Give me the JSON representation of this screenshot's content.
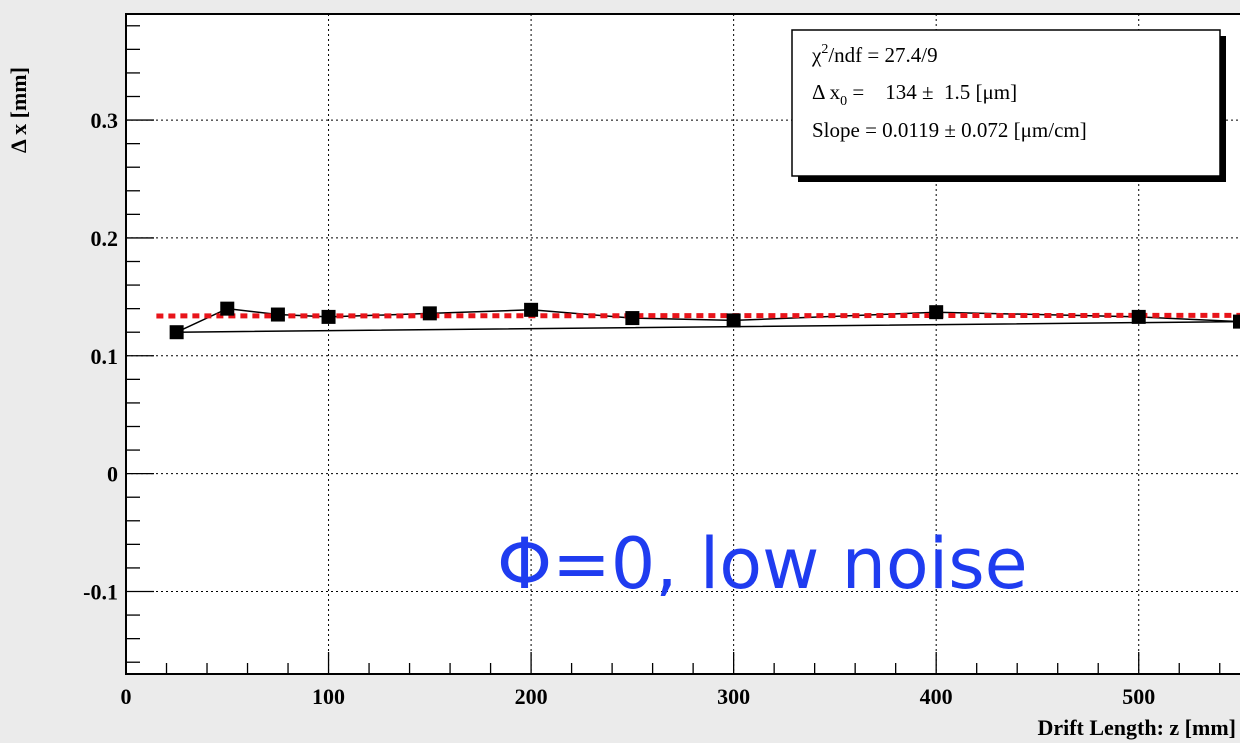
{
  "chart_data": {
    "type": "scatter",
    "xlabel": "Drift Length: z [mm]",
    "ylabel": "Δ x [mm]",
    "xlim": [
      0,
      550
    ],
    "ylim": [
      -0.17,
      0.39
    ],
    "x_ticks": [
      {
        "value": 0,
        "label": "0"
      },
      {
        "value": 100,
        "label": "100"
      },
      {
        "value": 200,
        "label": "200"
      },
      {
        "value": 300,
        "label": "300"
      },
      {
        "value": 400,
        "label": "400"
      },
      {
        "value": 500,
        "label": "500"
      }
    ],
    "y_ticks": [
      {
        "value": -0.1,
        "label": "-0.1"
      },
      {
        "value": 0,
        "label": "0"
      },
      {
        "value": 0.1,
        "label": "0.1"
      },
      {
        "value": 0.2,
        "label": "0.2"
      },
      {
        "value": 0.3,
        "label": "0.3"
      }
    ],
    "grid": true,
    "series": [
      {
        "x": [
          25,
          50,
          75,
          100,
          150,
          200,
          250,
          300,
          400,
          500,
          550
        ],
        "y": [
          0.12,
          0.14,
          0.135,
          0.133,
          0.136,
          0.139,
          0.132,
          0.13,
          0.137,
          0.133,
          0.129
        ],
        "marker": "square",
        "color": "#000000",
        "connect": "closed-polyline"
      }
    ],
    "fit_line": {
      "x": [
        15,
        550
      ],
      "y": [
        0.1338,
        0.1343
      ],
      "color": "#e8141a",
      "style": "dotted"
    },
    "stats_box": {
      "placement": "top-right",
      "lines": {
        "chi2": "χ²/ndf = 27.4/9",
        "chi2_base": "χ",
        "chi2_sup": "2",
        "chi2_rest": "/ndf = 27.4/9",
        "dx0_pre": "Δ x",
        "dx0_sub": "0",
        "dx0_rest": " =    134 ±  1.5 [μm]",
        "slope": "Slope = 0.0119 ± 0.072 [μm/cm]"
      }
    },
    "annotation": {
      "text": "Φ=0, low noise",
      "color": "#1f3cf0"
    }
  }
}
